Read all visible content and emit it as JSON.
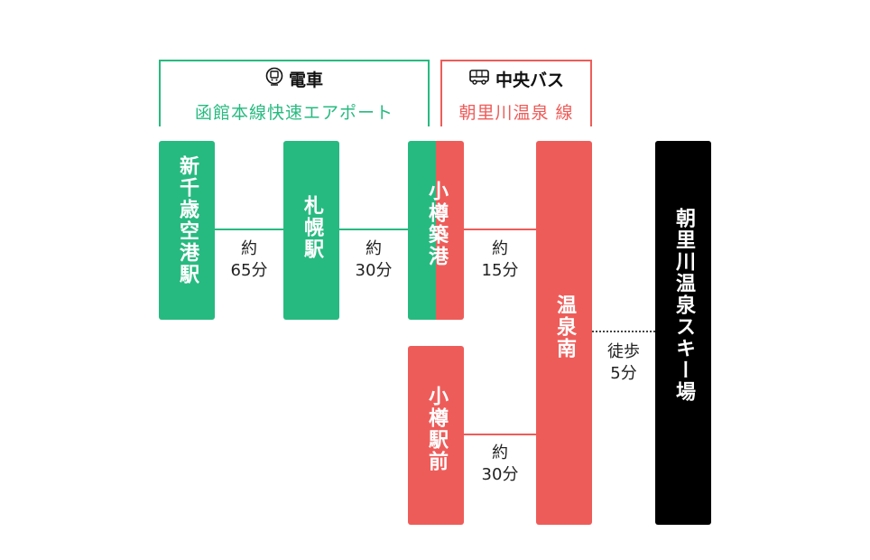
{
  "colors": {
    "train": "#27ba80",
    "bus": "#ee5c59",
    "destination": "#000000",
    "line": "#27ba80",
    "line_bus": "#ee5c59"
  },
  "legend": {
    "train": {
      "icon": "train-icon",
      "title": "電車",
      "subtitle": "函館本線快速エアポート"
    },
    "bus": {
      "icon": "bus-icon",
      "title": "中央バス",
      "subtitle": "朝里川温泉 線"
    }
  },
  "stations": {
    "new_chitose": "新千歳空港駅",
    "sapporo": "札幌駅",
    "otaru_chikko": "小樽築港",
    "otaru_station": "小樽駅前",
    "onsen_minami": "温泉南",
    "ski_resort": "朝里川温泉スキー場"
  },
  "durations": {
    "d1": {
      "approx": "約",
      "time": "65分"
    },
    "d2": {
      "approx": "約",
      "time": "30分"
    },
    "d3": {
      "approx": "約",
      "time": "15分"
    },
    "d4": {
      "approx": "約",
      "time": "30分"
    },
    "walk": {
      "approx": "徒歩",
      "time": "5分"
    }
  }
}
